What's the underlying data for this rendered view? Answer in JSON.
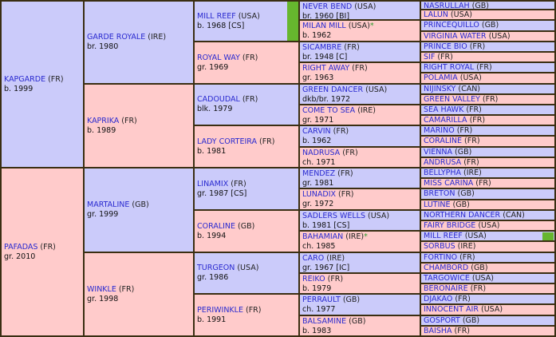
{
  "pedigree": {
    "col1": [
      {
        "name": "KAPGARDE",
        "country": "(FR)",
        "info": "b. 1999",
        "sex": "m"
      },
      {
        "name": "PAFADAS",
        "country": "(FR)",
        "info": "gr. 2010",
        "sex": "f"
      }
    ],
    "col2": [
      {
        "name": "GARDE ROYALE",
        "country": "(IRE)",
        "info": "br. 1980",
        "sex": "m"
      },
      {
        "name": "KAPRIKA",
        "country": "(FR)",
        "info": "b. 1989",
        "sex": "f"
      },
      {
        "name": "MARTALINE",
        "country": "(GB)",
        "info": "gr. 1999",
        "sex": "m"
      },
      {
        "name": "WINKLE",
        "country": "(FR)",
        "info": "gr. 1998",
        "sex": "f"
      }
    ],
    "col3": [
      {
        "name": "MILL REEF",
        "country": "(USA)",
        "info": "b. 1968 [CS]",
        "sex": "m"
      },
      {
        "name": "ROYAL WAY",
        "country": "(FR)",
        "info": "gr. 1969",
        "sex": "f"
      },
      {
        "name": "CADOUDAL",
        "country": "(FR)",
        "info": "blk. 1979",
        "sex": "m"
      },
      {
        "name": "LADY CORTEIRA",
        "country": "(FR)",
        "info": "b. 1981",
        "sex": "f"
      },
      {
        "name": "LINAMIX",
        "country": "(FR)",
        "info": "gr. 1987 [CS]",
        "sex": "m"
      },
      {
        "name": "CORALINE",
        "country": "(GB)",
        "info": "b. 1994",
        "sex": "f"
      },
      {
        "name": "TURGEON",
        "country": "(USA)",
        "info": "gr. 1986",
        "sex": "m"
      },
      {
        "name": "PERIWINKLE",
        "country": "(FR)",
        "info": "b. 1991",
        "sex": "f"
      }
    ],
    "col4": [
      {
        "name": "NEVER BEND",
        "country": "(USA)",
        "info": "br. 1960 [BI]",
        "sex": "m"
      },
      {
        "name": "MILAN MILL",
        "country": "(USA)",
        "info": "b. 1962",
        "sex": "f",
        "star": "*"
      },
      {
        "name": "SICAMBRE",
        "country": "(FR)",
        "info": "br. 1948 [C]",
        "sex": "m"
      },
      {
        "name": "RIGHT AWAY",
        "country": "(FR)",
        "info": "gr. 1963",
        "sex": "f"
      },
      {
        "name": "GREEN DANCER",
        "country": "(USA)",
        "info": "dkb/br. 1972",
        "sex": "m"
      },
      {
        "name": "COME TO SEA",
        "country": "(IRE)",
        "info": "gr. 1971",
        "sex": "f"
      },
      {
        "name": "CARVIN",
        "country": "(FR)",
        "info": "b. 1962",
        "sex": "m"
      },
      {
        "name": "NADRUSA",
        "country": "(FR)",
        "info": "ch. 1971",
        "sex": "f"
      },
      {
        "name": "MENDEZ",
        "country": "(FR)",
        "info": "gr. 1981",
        "sex": "m"
      },
      {
        "name": "LUNADIX",
        "country": "(FR)",
        "info": "gr. 1972",
        "sex": "f"
      },
      {
        "name": "SADLERS WELLS",
        "country": "(USA)",
        "info": "b. 1981 [CS]",
        "sex": "m"
      },
      {
        "name": "BAHAMIAN",
        "country": "(IRE)",
        "info": "ch. 1985",
        "sex": "f",
        "star": "*"
      },
      {
        "name": "CARO",
        "country": "(IRE)",
        "info": "gr. 1967 [IC]",
        "sex": "m"
      },
      {
        "name": "REIKO",
        "country": "(FR)",
        "info": "b. 1979",
        "sex": "f"
      },
      {
        "name": "PERRAULT",
        "country": "(GB)",
        "info": "ch. 1977",
        "sex": "m"
      },
      {
        "name": "BALSAMINE",
        "country": "(GB)",
        "info": "b. 1983",
        "sex": "f"
      }
    ],
    "col5": [
      {
        "name": "NASRULLAH",
        "country": "(GB)",
        "sex": "m"
      },
      {
        "name": "LALUN",
        "country": "(USA)",
        "sex": "f"
      },
      {
        "name": "PRINCEQUILLO",
        "country": "(GB)",
        "sex": "m"
      },
      {
        "name": "VIRGINIA WATER",
        "country": "(USA)",
        "sex": "f"
      },
      {
        "name": "PRINCE BIO",
        "country": "(FR)",
        "sex": "m"
      },
      {
        "name": "SIF",
        "country": "(FR)",
        "sex": "f"
      },
      {
        "name": "RIGHT ROYAL",
        "country": "(FR)",
        "sex": "m"
      },
      {
        "name": "POLAMIA",
        "country": "(USA)",
        "sex": "f"
      },
      {
        "name": "NIJINSKY",
        "country": "(CAN)",
        "sex": "m"
      },
      {
        "name": "GREEN VALLEY",
        "country": "(FR)",
        "sex": "f"
      },
      {
        "name": "SEA HAWK",
        "country": "(FR)",
        "sex": "m"
      },
      {
        "name": "CAMARILLA",
        "country": "(FR)",
        "sex": "f"
      },
      {
        "name": "MARINO",
        "country": "(FR)",
        "sex": "m"
      },
      {
        "name": "CORALINE",
        "country": "(FR)",
        "sex": "f"
      },
      {
        "name": "VIENNA",
        "country": "(GB)",
        "sex": "m"
      },
      {
        "name": "ANDRUSA",
        "country": "(FR)",
        "sex": "f"
      },
      {
        "name": "BELLYPHA",
        "country": "(IRE)",
        "sex": "m"
      },
      {
        "name": "MISS CARINA",
        "country": "(FR)",
        "sex": "f"
      },
      {
        "name": "BRETON",
        "country": "(GB)",
        "sex": "m"
      },
      {
        "name": "LUTINE",
        "country": "(GB)",
        "sex": "f"
      },
      {
        "name": "NORTHERN DANCER",
        "country": "(CAN)",
        "sex": "m"
      },
      {
        "name": "FAIRY BRIDGE",
        "country": "(USA)",
        "sex": "f"
      },
      {
        "name": "MILL REEF",
        "country": "(USA)",
        "sex": "m"
      },
      {
        "name": "SORBUS",
        "country": "(IRE)",
        "sex": "f"
      },
      {
        "name": "FORTINO",
        "country": "(FR)",
        "sex": "m"
      },
      {
        "name": "CHAMBORD",
        "country": "(GB)",
        "sex": "f"
      },
      {
        "name": "TARGOWICE",
        "country": "(USA)",
        "sex": "m"
      },
      {
        "name": "BERONAIRE",
        "country": "(FR)",
        "sex": "f"
      },
      {
        "name": "DJAKAO",
        "country": "(FR)",
        "sex": "m"
      },
      {
        "name": "INNOCENT AIR",
        "country": "(USA)",
        "sex": "f"
      },
      {
        "name": "GOSPORT",
        "country": "(GB)",
        "sex": "m"
      },
      {
        "name": "BAISHA",
        "country": "(FR)",
        "sex": "f"
      }
    ]
  },
  "colors": {
    "male_bg": "#cbcbfa",
    "female_bg": "#ffcbcb",
    "border": "#3a2e12",
    "name_link": "#2a2ad0",
    "inbreeding_marker": "#66b62e"
  }
}
